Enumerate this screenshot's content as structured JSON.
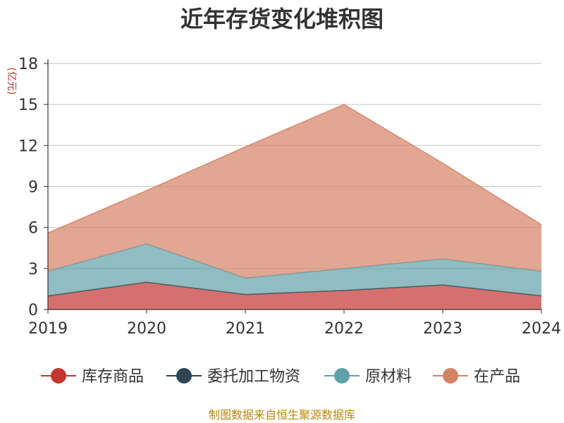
{
  "chart_data": {
    "type": "area",
    "stacked": true,
    "title": "近年存货变化堆积图",
    "unit": "(亿元)",
    "x": [
      "2019",
      "2020",
      "2021",
      "2022",
      "2023",
      "2024"
    ],
    "ylim": [
      0,
      18
    ],
    "yticks": [
      0,
      3,
      6,
      9,
      12,
      15,
      18
    ],
    "grid": true,
    "legend_position": "bottom",
    "series": [
      {
        "name": "库存商品",
        "color": "#c23531",
        "values": [
          1.0,
          2.0,
          1.1,
          1.4,
          1.8,
          1.0
        ]
      },
      {
        "name": "委托加工物资",
        "color": "#2f4554",
        "values": [
          0,
          0,
          0,
          0,
          0,
          0
        ]
      },
      {
        "name": "原材料",
        "color": "#61a0a8",
        "values": [
          1.8,
          2.8,
          1.2,
          1.6,
          1.9,
          1.8
        ]
      },
      {
        "name": "在产品",
        "color": "#d48265",
        "values": [
          2.8,
          3.9,
          9.6,
          12.0,
          7.0,
          3.4
        ]
      }
    ],
    "source": "制图数据来自恒生聚源数据库"
  }
}
